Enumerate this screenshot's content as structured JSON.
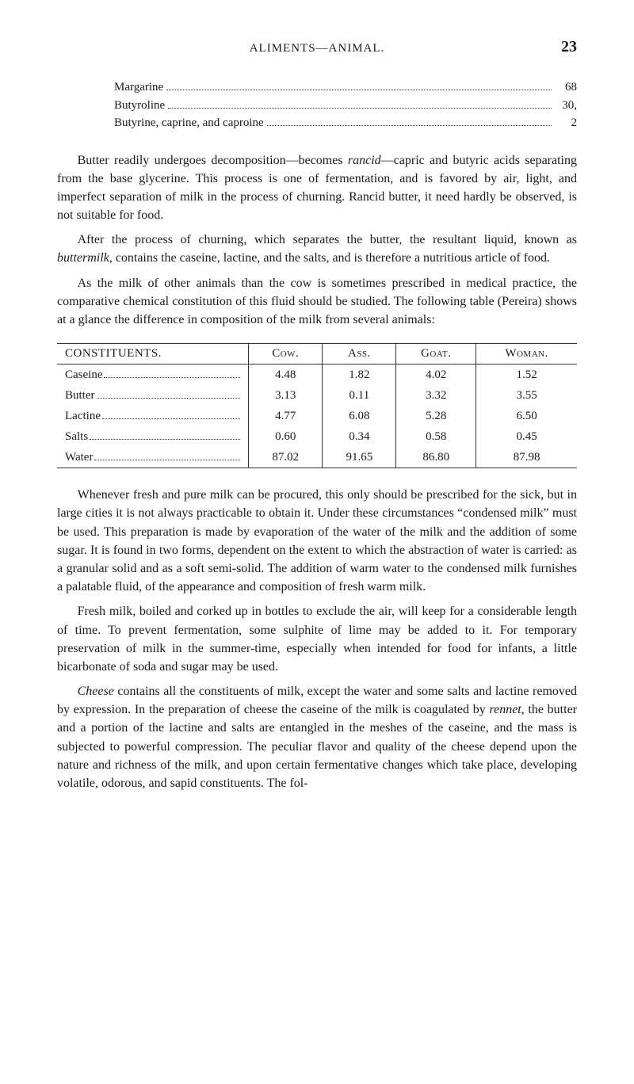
{
  "header": {
    "running_head": "ALIMENTS—ANIMAL.",
    "page_number": "23"
  },
  "butter_components": {
    "items": [
      {
        "label": "Margarine",
        "value": "68"
      },
      {
        "label": "Butyroline",
        "value": "30,"
      },
      {
        "label": "Butyrine, caprine, and caproine",
        "value": "2"
      }
    ]
  },
  "paragraphs": {
    "p1a": "Butter readily undergoes decomposition—becomes ",
    "p1_ital1": "rancid",
    "p1b": "—capric and butyric acids separating from the base glycerine. This process is one of fermentation, and is favored by air, light, and imperfect separation of milk in the process of churning. Rancid butter, it need hardly be observed, is not suitable for food.",
    "p2a": "After the process of churning, which separates the butter, the resultant liquid, known as ",
    "p2_ital1": "buttermilk",
    "p2b": ", contains the caseine, lactine, and the salts, and is therefore a nutritious article of food.",
    "p3": "As the milk of other animals than the cow is sometimes prescribed in medical practice, the comparative chemical constitution of this fluid should be studied. The following table (Pereira) shows at a glance the difference in composition of the milk from several animals:",
    "p4": "Whenever fresh and pure milk can be procured, this only should be prescribed for the sick, but in large cities it is not always practicable to obtain it. Under these circumstances “condensed milk” must be used. This preparation is made by evaporation of the water of the milk and the addition of some sugar. It is found in two forms, dependent on the extent to which the abstraction of water is carried: as a granular solid and as a soft semi-solid. The addition of warm water to the condensed milk furnishes a palatable fluid, of the appearance and composition of fresh warm milk.",
    "p5": "Fresh milk, boiled and corked up in bottles to exclude the air, will keep for a considerable length of time. To prevent fermentation, some sulphite of lime may be added to it. For temporary preservation of milk in the summer-time, especially when intended for food for infants, a little bicarbonate of soda and sugar may be used.",
    "p6_ital1": "Cheese",
    "p6a": " contains all the constituents of milk, except the water and some salts and lactine removed by expression. In the preparation of cheese the caseine of the milk is coagulated by ",
    "p6_ital2": "rennet",
    "p6b": ", the butter and a portion of the lactine and salts are entangled in the meshes of the caseine, and the mass is subjected to powerful compression. The peculiar flavor and quality of the cheese depend upon the nature and richness of the milk, and upon certain fermentative changes which take place, developing volatile, odorous, and sapid constituents. The fol-"
  },
  "milk_table": {
    "columns": [
      "CONSTITUENTS.",
      "Cow.",
      "Ass.",
      "Goat.",
      "Woman."
    ],
    "rows": [
      {
        "label": "Caseine",
        "vals": [
          "4.48",
          "1.82",
          "4.02",
          "1.52"
        ]
      },
      {
        "label": "Butter",
        "vals": [
          "3.13",
          "0.11",
          "3.32",
          "3.55"
        ]
      },
      {
        "label": "Lactine",
        "vals": [
          "4.77",
          "6.08",
          "5.28",
          "6.50"
        ]
      },
      {
        "label": "Salts",
        "vals": [
          "0.60",
          "0.34",
          "0.58",
          "0.45"
        ]
      },
      {
        "label": "Water",
        "vals": [
          "87.02",
          "91.65",
          "86.80",
          "87.98"
        ]
      }
    ]
  }
}
